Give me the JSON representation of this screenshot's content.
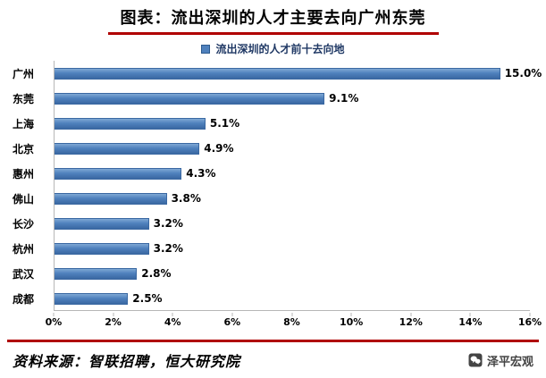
{
  "title": "图表：流出深圳的人才主要去向广州东莞",
  "chart_data": {
    "type": "bar",
    "orientation": "horizontal",
    "legend": "流出深圳的人才前十去向地",
    "categories": [
      "广州",
      "东莞",
      "上海",
      "北京",
      "惠州",
      "佛山",
      "长沙",
      "杭州",
      "武汉",
      "成都"
    ],
    "values": [
      15.0,
      9.1,
      5.1,
      4.9,
      4.3,
      3.8,
      3.2,
      3.2,
      2.8,
      2.5
    ],
    "value_labels": [
      "15.0%",
      "9.1%",
      "5.1%",
      "4.9%",
      "4.3%",
      "3.8%",
      "3.2%",
      "3.2%",
      "2.8%",
      "2.5%"
    ],
    "x_ticks": [
      "0%",
      "2%",
      "4%",
      "6%",
      "8%",
      "10%",
      "12%",
      "14%",
      "16%"
    ],
    "xlim": [
      0,
      16
    ],
    "grid": false,
    "legend_position": "top",
    "bar_color": "#4f81bd"
  },
  "footer": {
    "source": "资料来源：智联招聘，恒大研究院",
    "brand": "泽平宏观"
  },
  "colors": {
    "accent_line": "#b00000",
    "bar": "#4f81bd",
    "legend_text": "#1f3864"
  }
}
